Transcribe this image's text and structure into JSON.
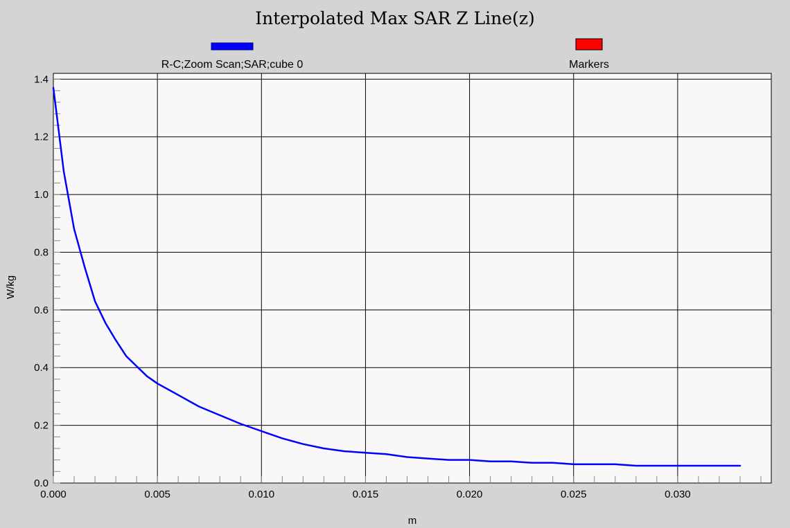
{
  "chart_data": {
    "type": "line",
    "title": "Interpolated Max SAR Z Line(z)",
    "xlabel": "m",
    "ylabel": "W/kg",
    "xlim": [
      0.0,
      0.0345
    ],
    "ylim": [
      0.0,
      1.42
    ],
    "grid": true,
    "legend_position": "top",
    "x_ticks": [
      "0.000",
      "0.005",
      "0.010",
      "0.015",
      "0.020",
      "0.025",
      "0.030"
    ],
    "y_ticks": [
      "0.0",
      "0.2",
      "0.4",
      "0.6",
      "0.8",
      "1.0",
      "1.2",
      "1.4"
    ],
    "legend": [
      {
        "name": "R-C;Zoom Scan;SAR;cube 0",
        "color": "#0000ff"
      },
      {
        "name": "Markers",
        "color": "#ff0000"
      }
    ],
    "series": [
      {
        "name": "R-C;Zoom Scan;SAR;cube 0",
        "color": "#0000ff",
        "x": [
          0.0,
          0.0005,
          0.001,
          0.0015,
          0.002,
          0.0025,
          0.003,
          0.0035,
          0.004,
          0.0045,
          0.005,
          0.006,
          0.007,
          0.008,
          0.009,
          0.01,
          0.011,
          0.012,
          0.013,
          0.014,
          0.015,
          0.016,
          0.017,
          0.018,
          0.019,
          0.02,
          0.021,
          0.022,
          0.023,
          0.024,
          0.025,
          0.026,
          0.027,
          0.028,
          0.029,
          0.03,
          0.031,
          0.032,
          0.033
        ],
        "y": [
          1.37,
          1.08,
          0.88,
          0.75,
          0.63,
          0.555,
          0.495,
          0.44,
          0.405,
          0.37,
          0.345,
          0.305,
          0.265,
          0.235,
          0.205,
          0.18,
          0.155,
          0.135,
          0.12,
          0.11,
          0.105,
          0.1,
          0.09,
          0.085,
          0.08,
          0.08,
          0.075,
          0.075,
          0.07,
          0.07,
          0.065,
          0.065,
          0.065,
          0.06,
          0.06,
          0.06,
          0.06,
          0.06,
          0.06
        ]
      }
    ]
  }
}
